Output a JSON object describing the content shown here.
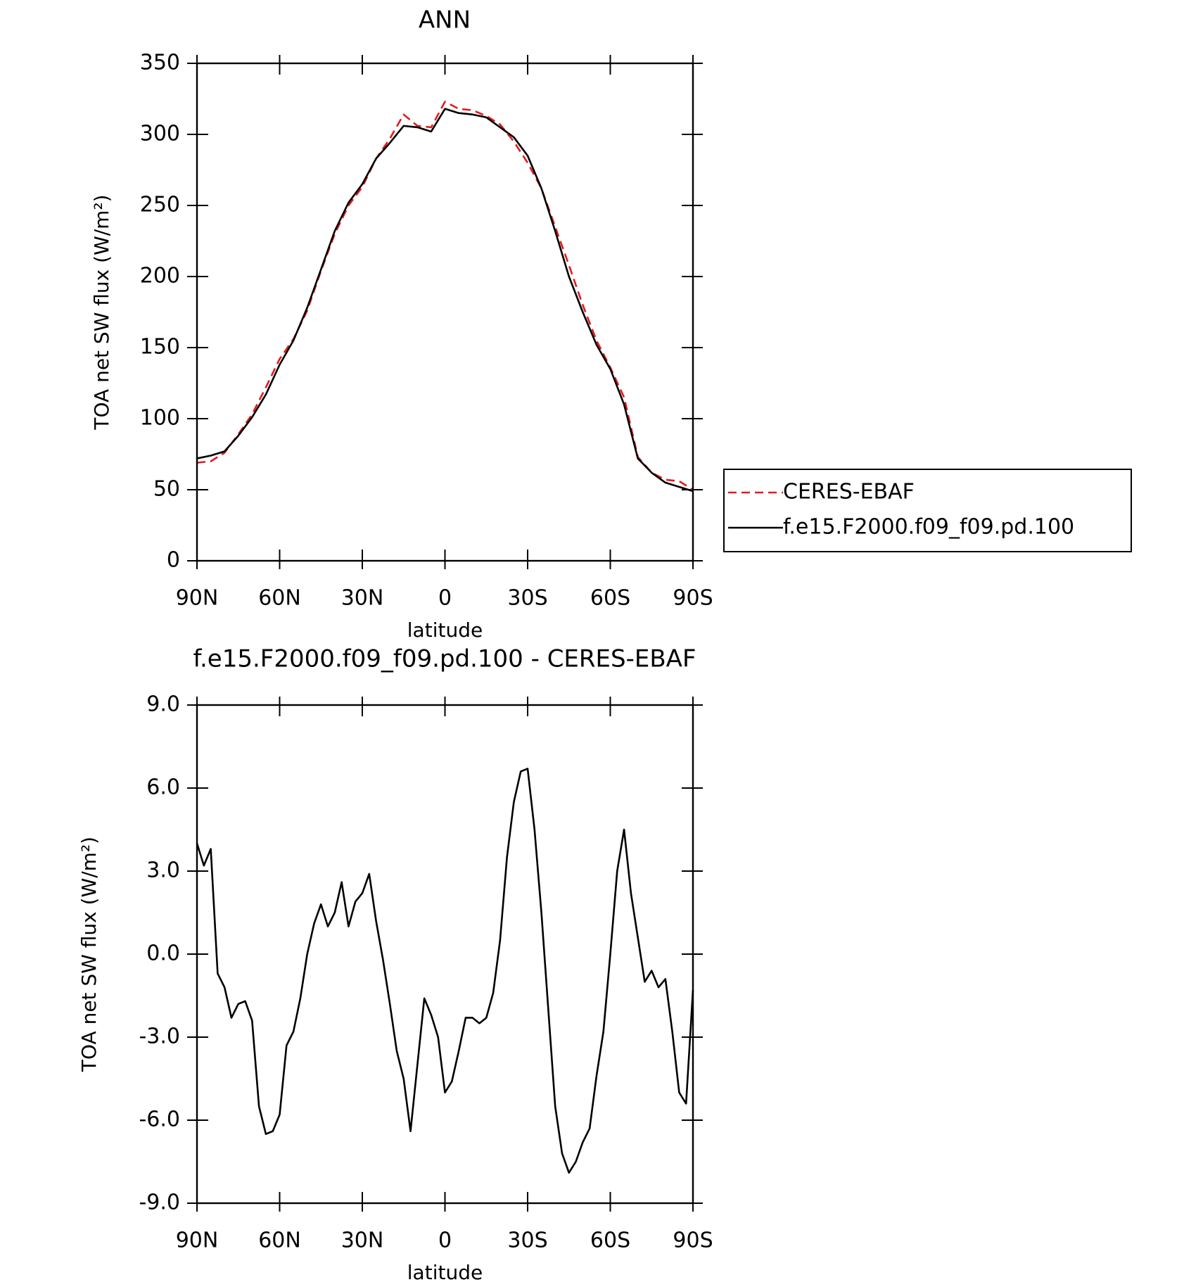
{
  "chart_data": [
    {
      "type": "line",
      "title": "ANN",
      "xlabel": "latitude",
      "ylabel": "TOA net SW flux (W/m²)",
      "x": [
        90,
        85,
        80,
        75,
        70,
        65,
        60,
        55,
        50,
        45,
        40,
        35,
        30,
        25,
        20,
        15,
        10,
        5,
        0,
        -5,
        -10,
        -15,
        -20,
        -25,
        -30,
        -35,
        -40,
        -45,
        -50,
        -55,
        -60,
        -65,
        -70,
        -75,
        -80,
        -85,
        -90
      ],
      "series": [
        {
          "name": "CERES-EBAF",
          "color": "#e41a1c",
          "dashed": true,
          "values": [
            69,
            70,
            76,
            89,
            103,
            122,
            142,
            156,
            176,
            204,
            230,
            250,
            263,
            283,
            297,
            314,
            306,
            305,
            323,
            318,
            317,
            313,
            307,
            295,
            280,
            262,
            235,
            208,
            180,
            155,
            136,
            115,
            73,
            62,
            57,
            56,
            50
          ]
        },
        {
          "name": "f.e15.F2000.f09_f09.pd.100",
          "color": "#000000",
          "dashed": false,
          "values": [
            72,
            74,
            77,
            88,
            101,
            117,
            138,
            155,
            178,
            205,
            232,
            252,
            265,
            283,
            294,
            306,
            305,
            302,
            318,
            315,
            314,
            312,
            305,
            298,
            285,
            262,
            232,
            200,
            175,
            152,
            135,
            110,
            72,
            62,
            55,
            52,
            49
          ]
        }
      ],
      "xlim": [
        90,
        -90
      ],
      "xticks": [
        {
          "value": 90,
          "label": "90N"
        },
        {
          "value": 60,
          "label": "60N"
        },
        {
          "value": 30,
          "label": "30N"
        },
        0,
        {
          "value": -30,
          "label": "30S"
        },
        {
          "value": -60,
          "label": "60S"
        },
        {
          "value": -90,
          "label": "90S"
        }
      ],
      "ylim": [
        0,
        350
      ],
      "yticks": [
        0,
        50,
        100,
        150,
        200,
        250,
        300,
        350
      ],
      "grid": false,
      "legend": "outside-right"
    },
    {
      "type": "line",
      "title": "f.e15.F2000.f09_f09.pd.100 - CERES-EBAF",
      "xlabel": "latitude",
      "ylabel": "TOA net SW flux (W/m²)",
      "x": [
        90,
        87.5,
        85,
        82.5,
        80,
        77.5,
        75,
        72.5,
        70,
        67.5,
        65,
        62.5,
        60,
        57.5,
        55,
        52.5,
        50,
        47.5,
        45,
        42.5,
        40,
        37.5,
        35,
        32.5,
        30,
        27.5,
        25,
        22.5,
        20,
        17.5,
        15,
        12.5,
        10,
        7.5,
        5,
        2.5,
        0,
        -2.5,
        -5,
        -7.5,
        -10,
        -12.5,
        -15,
        -17.5,
        -20,
        -22.5,
        -25,
        -27.5,
        -30,
        -32.5,
        -35,
        -37.5,
        -40,
        -42.5,
        -45,
        -47.5,
        -50,
        -52.5,
        -55,
        -57.5,
        -60,
        -62.5,
        -65,
        -67.5,
        -70,
        -72.5,
        -75,
        -77.5,
        -80,
        -82.5,
        -85,
        -87.5,
        -90
      ],
      "series": [
        {
          "color": "#000000",
          "dashed": false,
          "values": [
            4.0,
            3.2,
            3.8,
            -0.7,
            -1.2,
            -2.3,
            -1.8,
            -1.7,
            -2.4,
            -5.5,
            -6.5,
            -6.4,
            -5.8,
            -3.3,
            -2.8,
            -1.6,
            0.0,
            1.1,
            1.8,
            1.0,
            1.5,
            2.6,
            1.0,
            1.9,
            2.2,
            2.9,
            1.2,
            -0.2,
            -1.8,
            -3.5,
            -4.5,
            -6.4,
            -4.0,
            -1.6,
            -2.2,
            -3.0,
            -5.0,
            -4.6,
            -3.5,
            -2.3,
            -2.3,
            -2.5,
            -2.3,
            -1.4,
            0.5,
            3.5,
            5.5,
            6.6,
            6.7,
            4.5,
            1.5,
            -2.0,
            -5.5,
            -7.2,
            -7.9,
            -7.5,
            -6.8,
            -6.3,
            -4.4,
            -2.8,
            0.0,
            3.0,
            4.5,
            2.2,
            0.6,
            -1.0,
            -0.6,
            -1.2,
            -0.9,
            -2.8,
            -5.0,
            -5.4,
            -1.3
          ]
        }
      ],
      "xlim": [
        90,
        -90
      ],
      "xticks": [
        {
          "value": 90,
          "label": "90N"
        },
        {
          "value": 60,
          "label": "60N"
        },
        {
          "value": 30,
          "label": "30N"
        },
        0,
        {
          "value": -30,
          "label": "30S"
        },
        {
          "value": -60,
          "label": "60S"
        },
        {
          "value": -90,
          "label": "90S"
        }
      ],
      "ylim": [
        -9,
        9
      ],
      "yticks": [
        {
          "value": -9,
          "label": "-9.0"
        },
        {
          "value": -6,
          "label": "-6.0"
        },
        {
          "value": -3,
          "label": "-3.0"
        },
        {
          "value": 0,
          "label": "0.0"
        },
        {
          "value": 3,
          "label": "3.0"
        },
        {
          "value": 6,
          "label": "6.0"
        },
        {
          "value": 9,
          "label": "9.0"
        }
      ],
      "grid": false
    }
  ]
}
